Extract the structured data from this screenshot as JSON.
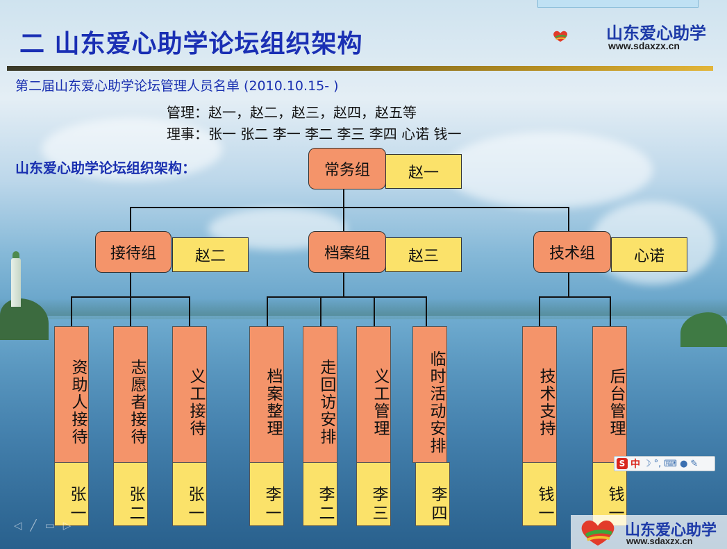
{
  "slide": {
    "title": "二 山东爱心助学论坛组织架构",
    "subtitle": "第二届山东爱心助学论坛管理人员名单 (2010.10.15- )",
    "managers_line": "管理：赵一，赵二，赵三，赵四，赵五等",
    "directors_line": "理事：张一  张二  李一  李二  李三  李四  心诺  钱一",
    "section_label": "山东爱心助学论坛组织架构："
  },
  "logo": {
    "name": "山东爱心助学",
    "url": "www.sdaxzx.cn"
  },
  "org": {
    "root": {
      "label": "常务组",
      "leader": "赵一"
    },
    "groups": [
      {
        "label": "接待组",
        "leader": "赵二",
        "teams": [
          {
            "label": "资助人接待",
            "person": "张一"
          },
          {
            "label": "志愿者接待",
            "person": "张二"
          },
          {
            "label": "义工接待",
            "person": "张一"
          }
        ]
      },
      {
        "label": "档案组",
        "leader": "赵三",
        "teams": [
          {
            "label": "档案整理",
            "person": "李一"
          },
          {
            "label": "走回访安排",
            "person": "李二"
          },
          {
            "label": "义工管理",
            "person": "李三"
          },
          {
            "label": "临时活动安排",
            "person": "李四"
          }
        ]
      },
      {
        "label": "技术组",
        "leader": "心诺",
        "teams": [
          {
            "label": "技术支持",
            "person": "钱一"
          },
          {
            "label": "后台管理",
            "person": "钱一"
          }
        ]
      }
    ]
  },
  "ime_toolbar": {
    "brand_char": "S",
    "mode": "中"
  },
  "footer": {
    "name": "山东爱心助学",
    "url": "www.sdaxzx.cn"
  },
  "colors": {
    "title": "#1a2fb4",
    "orange_box": "#f4946a",
    "yellow_box": "#fbe26a"
  }
}
